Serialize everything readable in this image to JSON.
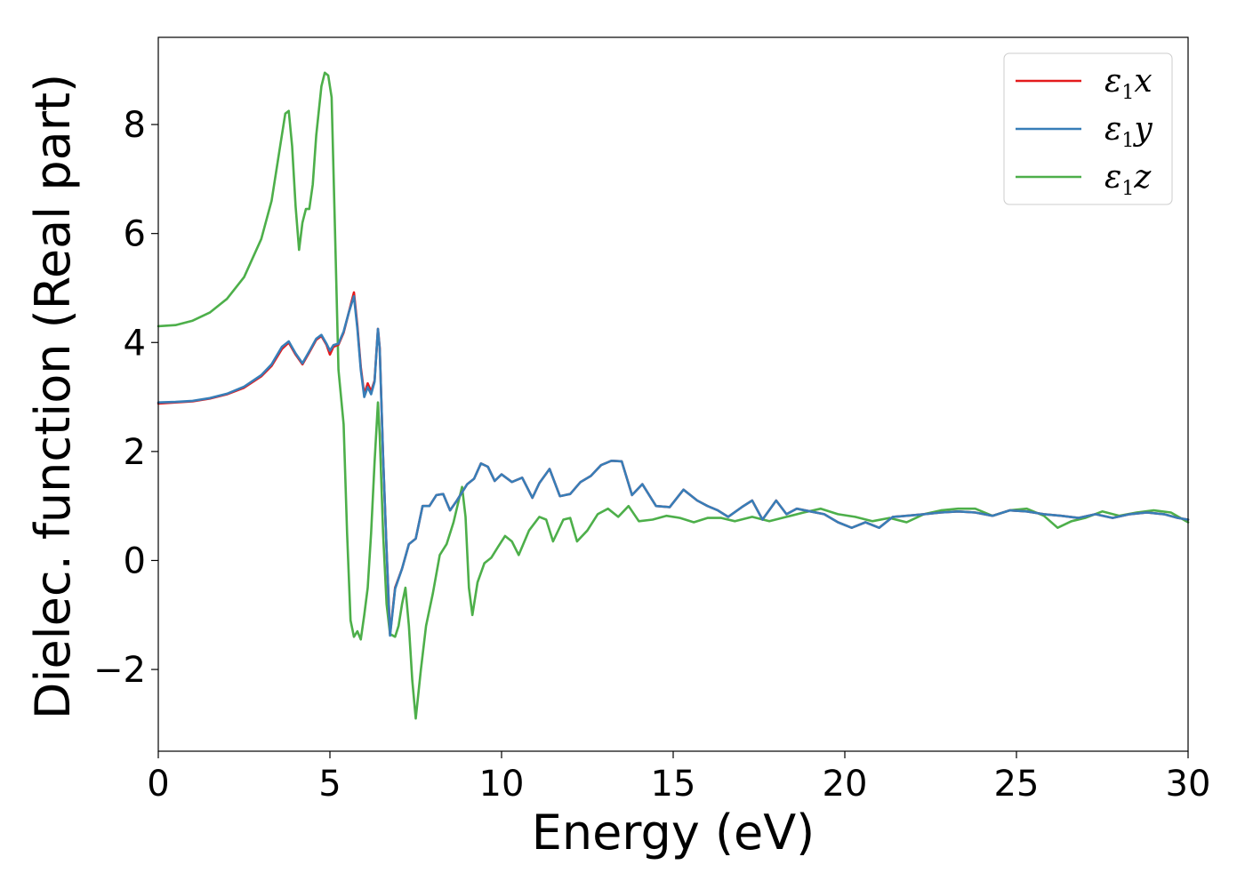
{
  "chart_data": {
    "type": "line",
    "title": "",
    "xlabel": "Energy (eV)",
    "ylabel": "Dielec. function (Real part)",
    "xlim": [
      0,
      30
    ],
    "ylim": [
      -3.5,
      9.6
    ],
    "xticks": [
      0,
      5,
      10,
      15,
      20,
      25,
      30
    ],
    "yticks": [
      -2,
      0,
      2,
      4,
      6,
      8
    ],
    "xtick_labels": [
      "0",
      "5",
      "10",
      "15",
      "20",
      "25",
      "30"
    ],
    "ytick_labels": [
      "−2",
      "0",
      "2",
      "4",
      "6",
      "8"
    ],
    "grid": false,
    "legend_position": "top-right",
    "series": [
      {
        "name": "ε1x",
        "color": "#e41a1c",
        "x": [
          0,
          0.5,
          1.0,
          1.5,
          2.0,
          2.5,
          3.0,
          3.3,
          3.6,
          3.8,
          4.0,
          4.2,
          4.4,
          4.6,
          4.75,
          4.9,
          5.0,
          5.1,
          5.25,
          5.4,
          5.55,
          5.7,
          5.8,
          5.9,
          6.0,
          6.1,
          6.2,
          6.3,
          6.4,
          6.45,
          6.55,
          6.65,
          6.75,
          6.9,
          7.1,
          7.3,
          7.5,
          7.7,
          7.9,
          8.1,
          8.3,
          8.5,
          8.7,
          9.0,
          9.2,
          9.4,
          9.6,
          9.8,
          10.0,
          10.3,
          10.6,
          10.9,
          11.1,
          11.4,
          11.7,
          12.0,
          12.3,
          12.6,
          12.9,
          13.2,
          13.5,
          13.8,
          14.1,
          14.5,
          14.9,
          15.3,
          15.7,
          16.0,
          16.3,
          16.6,
          17.0,
          17.3,
          17.6,
          18.0,
          18.3,
          18.6,
          19.0,
          19.4,
          19.8,
          20.2,
          20.6,
          21.0,
          21.4,
          21.8,
          22.3,
          22.8,
          23.3,
          23.8,
          24.3,
          24.8,
          25.3,
          25.8,
          26.3,
          26.8,
          27.3,
          27.8,
          28.3,
          28.8,
          29.3,
          29.7,
          30.0
        ],
        "y": [
          2.88,
          2.9,
          2.92,
          2.97,
          3.05,
          3.17,
          3.38,
          3.57,
          3.88,
          4.0,
          3.78,
          3.6,
          3.82,
          4.05,
          4.12,
          3.96,
          3.78,
          3.92,
          3.96,
          4.18,
          4.55,
          4.92,
          4.3,
          3.55,
          3.05,
          3.25,
          3.1,
          3.3,
          4.25,
          3.9,
          1.9,
          0.2,
          -1.35,
          -0.5,
          -0.15,
          0.3,
          0.4,
          1.0,
          1.0,
          1.2,
          1.22,
          0.92,
          1.1,
          1.4,
          1.5,
          1.78,
          1.72,
          1.46,
          1.58,
          1.44,
          1.52,
          1.15,
          1.42,
          1.68,
          1.18,
          1.22,
          1.44,
          1.55,
          1.75,
          1.83,
          1.82,
          1.2,
          1.4,
          1.0,
          0.98,
          1.3,
          1.1,
          1.0,
          0.92,
          0.8,
          0.98,
          1.1,
          0.75,
          1.1,
          0.85,
          0.95,
          0.9,
          0.85,
          0.7,
          0.6,
          0.7,
          0.6,
          0.8,
          0.82,
          0.85,
          0.88,
          0.9,
          0.88,
          0.82,
          0.92,
          0.9,
          0.85,
          0.82,
          0.78,
          0.85,
          0.78,
          0.85,
          0.88,
          0.85,
          0.78,
          0.75
        ]
      },
      {
        "name": "ε1y",
        "color": "#377eb8",
        "x": [
          0,
          0.5,
          1.0,
          1.5,
          2.0,
          2.5,
          3.0,
          3.3,
          3.6,
          3.8,
          4.0,
          4.2,
          4.4,
          4.6,
          4.75,
          4.9,
          5.0,
          5.1,
          5.25,
          5.4,
          5.55,
          5.7,
          5.8,
          5.9,
          6.0,
          6.1,
          6.2,
          6.3,
          6.4,
          6.45,
          6.55,
          6.65,
          6.75,
          6.9,
          7.1,
          7.3,
          7.5,
          7.7,
          7.9,
          8.1,
          8.3,
          8.5,
          8.7,
          9.0,
          9.2,
          9.4,
          9.6,
          9.8,
          10.0,
          10.3,
          10.6,
          10.9,
          11.1,
          11.4,
          11.7,
          12.0,
          12.3,
          12.6,
          12.9,
          13.2,
          13.5,
          13.8,
          14.1,
          14.5,
          14.9,
          15.3,
          15.7,
          16.0,
          16.3,
          16.6,
          17.0,
          17.3,
          17.6,
          18.0,
          18.3,
          18.6,
          19.0,
          19.4,
          19.8,
          20.2,
          20.6,
          21.0,
          21.4,
          21.8,
          22.3,
          22.8,
          23.3,
          23.8,
          24.3,
          24.8,
          25.3,
          25.8,
          26.3,
          26.8,
          27.3,
          27.8,
          28.3,
          28.8,
          29.3,
          29.7,
          30.0
        ],
        "y": [
          2.9,
          2.91,
          2.93,
          2.98,
          3.06,
          3.19,
          3.4,
          3.6,
          3.92,
          4.02,
          3.8,
          3.62,
          3.84,
          4.07,
          4.14,
          3.98,
          3.85,
          3.95,
          3.98,
          4.2,
          4.55,
          4.85,
          4.25,
          3.5,
          3.0,
          3.18,
          3.05,
          3.28,
          4.25,
          3.88,
          1.9,
          0.2,
          -1.38,
          -0.52,
          -0.15,
          0.3,
          0.4,
          1.0,
          1.0,
          1.2,
          1.22,
          0.92,
          1.1,
          1.4,
          1.5,
          1.78,
          1.72,
          1.46,
          1.58,
          1.44,
          1.52,
          1.15,
          1.42,
          1.68,
          1.18,
          1.22,
          1.44,
          1.55,
          1.75,
          1.83,
          1.82,
          1.2,
          1.4,
          1.0,
          0.98,
          1.3,
          1.1,
          1.0,
          0.92,
          0.8,
          0.98,
          1.1,
          0.75,
          1.1,
          0.85,
          0.95,
          0.9,
          0.85,
          0.7,
          0.6,
          0.7,
          0.6,
          0.8,
          0.82,
          0.85,
          0.88,
          0.9,
          0.88,
          0.82,
          0.92,
          0.9,
          0.85,
          0.82,
          0.78,
          0.85,
          0.78,
          0.85,
          0.88,
          0.85,
          0.78,
          0.75
        ]
      },
      {
        "name": "ε1z",
        "color": "#4daf4a",
        "x": [
          0,
          0.5,
          1.0,
          1.5,
          2.0,
          2.5,
          3.0,
          3.3,
          3.55,
          3.7,
          3.8,
          3.9,
          4.0,
          4.1,
          4.2,
          4.3,
          4.4,
          4.5,
          4.6,
          4.75,
          4.85,
          4.95,
          5.05,
          5.15,
          5.25,
          5.4,
          5.5,
          5.6,
          5.7,
          5.8,
          5.9,
          6.0,
          6.1,
          6.2,
          6.3,
          6.4,
          6.45,
          6.55,
          6.65,
          6.75,
          6.9,
          7.0,
          7.1,
          7.2,
          7.3,
          7.4,
          7.5,
          7.65,
          7.8,
          8.0,
          8.2,
          8.4,
          8.6,
          8.75,
          8.85,
          8.95,
          9.05,
          9.15,
          9.3,
          9.5,
          9.7,
          9.9,
          10.1,
          10.3,
          10.5,
          10.8,
          11.1,
          11.3,
          11.5,
          11.8,
          12.0,
          12.2,
          12.5,
          12.8,
          13.1,
          13.4,
          13.7,
          14.0,
          14.4,
          14.8,
          15.2,
          15.6,
          16.0,
          16.4,
          16.8,
          17.3,
          17.8,
          18.3,
          18.8,
          19.3,
          19.8,
          20.3,
          20.8,
          21.3,
          21.8,
          22.3,
          22.8,
          23.3,
          23.8,
          24.3,
          24.8,
          25.3,
          25.8,
          26.2,
          26.6,
          27.0,
          27.5,
          28.0,
          28.5,
          29.0,
          29.5,
          30.0
        ],
        "y": [
          4.3,
          4.32,
          4.4,
          4.55,
          4.8,
          5.2,
          5.9,
          6.6,
          7.6,
          8.2,
          8.25,
          7.6,
          6.5,
          5.7,
          6.2,
          6.45,
          6.45,
          6.9,
          7.8,
          8.7,
          8.95,
          8.9,
          8.5,
          6.0,
          3.5,
          2.5,
          0.5,
          -1.1,
          -1.4,
          -1.3,
          -1.45,
          -1.0,
          -0.5,
          0.5,
          1.8,
          2.9,
          2.3,
          0.5,
          -0.8,
          -1.35,
          -1.4,
          -1.2,
          -0.8,
          -0.5,
          -1.2,
          -2.2,
          -2.9,
          -2.0,
          -1.2,
          -0.6,
          0.1,
          0.3,
          0.7,
          1.1,
          1.35,
          0.8,
          -0.5,
          -1.0,
          -0.4,
          -0.05,
          0.05,
          0.25,
          0.45,
          0.35,
          0.1,
          0.55,
          0.8,
          0.75,
          0.35,
          0.75,
          0.78,
          0.35,
          0.55,
          0.85,
          0.95,
          0.8,
          1.0,
          0.72,
          0.75,
          0.82,
          0.78,
          0.7,
          0.78,
          0.78,
          0.72,
          0.8,
          0.72,
          0.8,
          0.88,
          0.95,
          0.85,
          0.8,
          0.72,
          0.78,
          0.7,
          0.85,
          0.92,
          0.95,
          0.95,
          0.82,
          0.92,
          0.95,
          0.82,
          0.6,
          0.72,
          0.78,
          0.9,
          0.82,
          0.88,
          0.92,
          0.88,
          0.7
        ]
      }
    ]
  }
}
